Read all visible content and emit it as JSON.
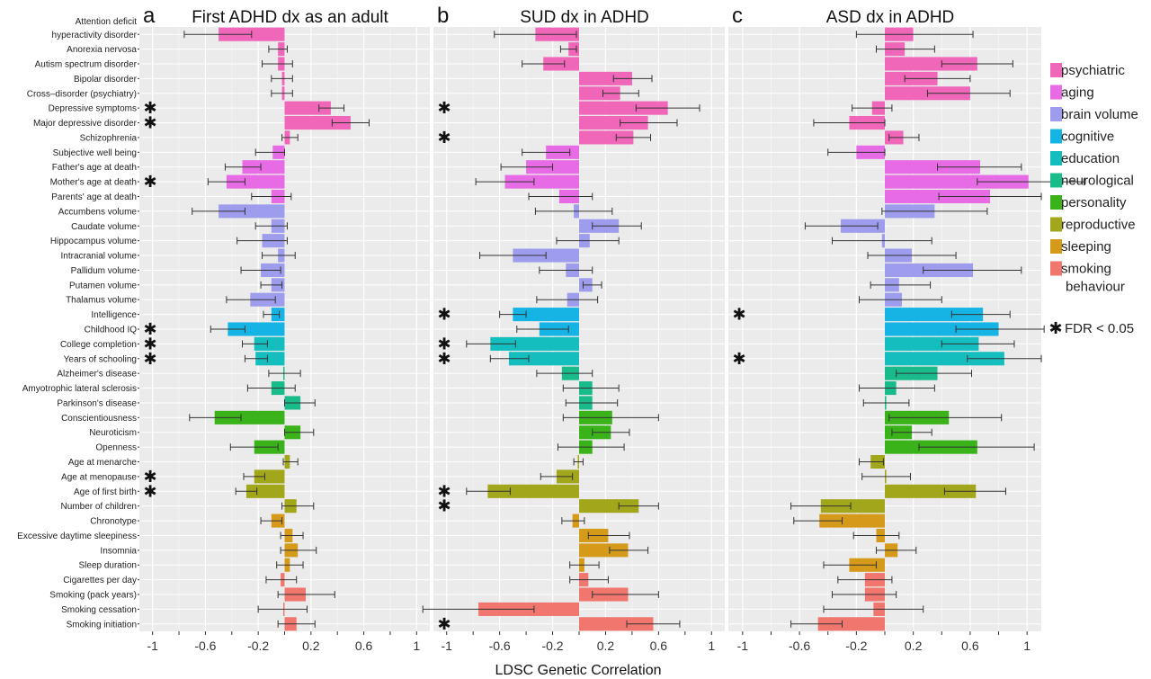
{
  "x_axis_title": "LDSC Genetic Correlation",
  "fdr_label": "FDR < 0.05",
  "star_glyph": "✱",
  "traits": [
    "Attention deficit hyperactivity disorder",
    "Anorexia nervosa",
    "Autism spectrum disorder",
    "Bipolar disorder",
    "Cross–disorder (psychiatry)",
    "Depressive symptoms",
    "Major depressive disorder",
    "Schizophrenia",
    "Subjective well being",
    "Father's age at death",
    "Mother's age at death",
    "Parents' age at death",
    "Accumbens volume",
    "Caudate volume",
    "Hippocampus volume",
    "Intracranial volume",
    "Pallidum volume",
    "Putamen volume",
    "Thalamus volume",
    "Intelligence",
    "Childhood IQ",
    "College completion",
    "Years of schooling",
    "Alzheimer's disease",
    "Amyotrophic lateral sclerosis",
    "Parkinson's disease",
    "Conscientiousness",
    "Neuroticism",
    "Openness",
    "Age at menarche",
    "Age at menopause",
    "Age of first birth",
    "Number of children",
    "Chronotype",
    "Excessive daytime sleepiness",
    "Insomnia",
    "Sleep duration",
    "Cigarettes per day",
    "Smoking (pack years)",
    "Smoking cessation",
    "Smoking initiation"
  ],
  "trait_category": [
    "psychiatric",
    "psychiatric",
    "psychiatric",
    "psychiatric",
    "psychiatric",
    "psychiatric",
    "psychiatric",
    "psychiatric",
    "aging",
    "aging",
    "aging",
    "aging",
    "brain volume",
    "brain volume",
    "brain volume",
    "brain volume",
    "brain volume",
    "brain volume",
    "brain volume",
    "cognitive",
    "cognitive",
    "education",
    "education",
    "neurological",
    "neurological",
    "neurological",
    "personality",
    "personality",
    "personality",
    "reproductive",
    "reproductive",
    "reproductive",
    "reproductive",
    "sleeping",
    "sleeping",
    "sleeping",
    "sleeping",
    "smoking behaviour",
    "smoking behaviour",
    "smoking behaviour",
    "smoking behaviour"
  ],
  "legend": {
    "entries": [
      {
        "name": "psychiatric",
        "color": "#F066B9"
      },
      {
        "name": "aging",
        "color": "#E76BE4"
      },
      {
        "name": "brain volume",
        "color": "#9E9CEC"
      },
      {
        "name": "cognitive",
        "color": "#16B4E5"
      },
      {
        "name": "education",
        "color": "#14BDBE"
      },
      {
        "name": "neurological",
        "color": "#19BB8A"
      },
      {
        "name": "personality",
        "color": "#3AB31A"
      },
      {
        "name": "reproductive",
        "color": "#A2A61A"
      },
      {
        "name": "sleeping",
        "color": "#D69A1B"
      },
      {
        "name": "smoking behaviour",
        "color": "#F0766E"
      }
    ]
  },
  "chart_data": [
    {
      "type": "bar",
      "orientation": "horizontal",
      "letter": "a",
      "title": "First ADHD dx as an adult",
      "xlim": [
        -1.1,
        1.1
      ],
      "ticks": [
        -1,
        -0.6,
        -0.2,
        0.2,
        0.6,
        1
      ],
      "grid": true,
      "values": [
        -0.5,
        -0.05,
        -0.05,
        -0.02,
        -0.02,
        0.35,
        0.5,
        0.04,
        -0.09,
        -0.32,
        -0.44,
        -0.1,
        -0.5,
        -0.1,
        -0.17,
        -0.05,
        -0.18,
        -0.1,
        -0.26,
        -0.1,
        -0.43,
        -0.23,
        -0.22,
        -0.01,
        -0.1,
        0.12,
        -0.53,
        0.12,
        -0.23,
        0.04,
        -0.23,
        -0.29,
        0.09,
        -0.1,
        0.06,
        0.1,
        0.04,
        -0.03,
        0.16,
        -0.01,
        0.09
      ],
      "ci_low": [
        -0.76,
        -0.12,
        -0.17,
        -0.1,
        -0.1,
        0.26,
        0.36,
        -0.02,
        -0.22,
        -0.45,
        -0.58,
        -0.25,
        -0.7,
        -0.22,
        -0.36,
        -0.17,
        -0.33,
        -0.18,
        -0.44,
        -0.16,
        -0.56,
        -0.32,
        -0.3,
        -0.12,
        -0.28,
        0.0,
        -0.72,
        0.0,
        -0.41,
        -0.01,
        -0.31,
        -0.37,
        -0.02,
        -0.18,
        -0.03,
        -0.03,
        -0.06,
        -0.14,
        -0.05,
        -0.2,
        -0.05
      ],
      "ci_high": [
        -0.25,
        0.02,
        0.06,
        0.06,
        0.06,
        0.45,
        0.64,
        0.1,
        0.0,
        -0.18,
        -0.3,
        0.05,
        -0.3,
        0.02,
        0.02,
        0.08,
        -0.03,
        -0.02,
        -0.07,
        -0.04,
        -0.3,
        -0.13,
        -0.13,
        0.12,
        0.08,
        0.23,
        -0.33,
        0.22,
        -0.05,
        0.1,
        -0.15,
        -0.21,
        0.22,
        -0.02,
        0.14,
        0.24,
        0.14,
        0.09,
        0.38,
        0.17,
        0.23
      ],
      "significant": [
        5,
        6,
        10,
        20,
        21,
        22,
        30,
        31
      ]
    },
    {
      "type": "bar",
      "orientation": "horizontal",
      "letter": "b",
      "title": "SUD dx in ADHD",
      "xlim": [
        -1.1,
        1.1
      ],
      "ticks": [
        -1,
        -0.6,
        -0.2,
        0.2,
        0.6,
        1
      ],
      "grid": true,
      "values": [
        -0.33,
        -0.08,
        -0.27,
        0.4,
        0.31,
        0.67,
        0.52,
        0.41,
        -0.25,
        -0.4,
        -0.56,
        -0.15,
        -0.04,
        0.3,
        0.08,
        -0.5,
        -0.1,
        0.1,
        -0.09,
        -0.5,
        -0.3,
        -0.67,
        -0.53,
        -0.13,
        0.1,
        0.1,
        0.25,
        0.24,
        0.1,
        -0.01,
        -0.17,
        -0.69,
        0.45,
        -0.05,
        0.22,
        0.37,
        0.04,
        0.07,
        0.37,
        -0.76,
        0.56
      ],
      "ci_low": [
        -0.64,
        -0.14,
        -0.43,
        0.26,
        0.18,
        0.43,
        0.31,
        0.28,
        -0.43,
        -0.59,
        -0.78,
        -0.38,
        -0.33,
        0.1,
        -0.17,
        -0.75,
        -0.3,
        0.03,
        -0.32,
        -0.6,
        -0.47,
        -0.85,
        -0.67,
        -0.32,
        -0.12,
        -0.1,
        -0.12,
        0.1,
        -0.16,
        -0.04,
        -0.29,
        -0.85,
        0.3,
        -0.13,
        0.07,
        0.23,
        -0.07,
        -0.07,
        0.1,
        -1.18,
        0.36
      ],
      "ci_high": [
        -0.02,
        -0.02,
        -0.11,
        0.55,
        0.45,
        0.91,
        0.74,
        0.54,
        -0.07,
        -0.2,
        -0.34,
        0.1,
        0.25,
        0.47,
        0.3,
        -0.25,
        0.1,
        0.17,
        0.14,
        -0.4,
        -0.08,
        -0.48,
        -0.38,
        0.1,
        0.3,
        0.29,
        0.6,
        0.38,
        0.34,
        0.03,
        -0.05,
        -0.52,
        0.6,
        0.04,
        0.38,
        0.52,
        0.15,
        0.22,
        0.6,
        -0.34,
        0.76
      ],
      "significant": [
        5,
        7,
        19,
        21,
        22,
        31,
        32,
        40
      ]
    },
    {
      "type": "bar",
      "orientation": "horizontal",
      "letter": "c",
      "title": "ASD dx in ADHD",
      "xlim": [
        -1.1,
        1.1
      ],
      "ticks": [
        -1,
        -0.6,
        -0.2,
        0.2,
        0.6,
        1
      ],
      "grid": true,
      "values": [
        0.2,
        0.14,
        0.65,
        0.37,
        0.6,
        -0.09,
        -0.25,
        0.13,
        -0.2,
        0.67,
        1.01,
        0.74,
        0.35,
        -0.31,
        -0.02,
        0.19,
        0.62,
        0.1,
        0.12,
        0.69,
        0.8,
        0.66,
        0.84,
        0.37,
        0.08,
        0.01,
        0.45,
        0.19,
        0.65,
        -0.1,
        0.01,
        0.64,
        -0.45,
        -0.46,
        -0.06,
        0.09,
        -0.25,
        -0.14,
        -0.14,
        -0.08,
        -0.47
      ],
      "ci_low": [
        -0.2,
        -0.06,
        0.4,
        0.14,
        0.3,
        -0.23,
        -0.5,
        0.03,
        -0.4,
        0.37,
        0.65,
        0.38,
        -0.02,
        -0.56,
        -0.37,
        -0.12,
        0.27,
        -0.1,
        -0.18,
        0.47,
        0.5,
        0.4,
        0.58,
        0.08,
        -0.18,
        -0.15,
        0.03,
        0.05,
        0.24,
        -0.18,
        -0.16,
        0.42,
        -0.66,
        -0.64,
        -0.22,
        -0.06,
        -0.43,
        -0.33,
        -0.37,
        -0.43,
        -0.66
      ],
      "ci_high": [
        0.62,
        0.35,
        0.9,
        0.6,
        0.88,
        0.05,
        0.0,
        0.24,
        0.0,
        0.96,
        1.4,
        1.1,
        0.72,
        -0.05,
        0.33,
        0.5,
        0.96,
        0.32,
        0.4,
        0.88,
        1.12,
        0.91,
        1.1,
        0.61,
        0.35,
        0.17,
        0.82,
        0.33,
        1.05,
        -0.01,
        0.18,
        0.85,
        -0.24,
        -0.3,
        0.1,
        0.22,
        -0.06,
        0.05,
        0.08,
        0.27,
        -0.3
      ],
      "significant": [
        19,
        22
      ]
    }
  ]
}
